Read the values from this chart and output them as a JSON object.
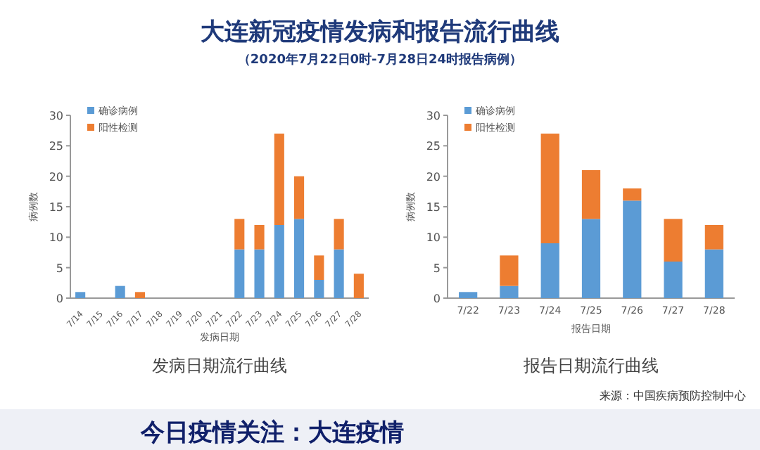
{
  "chart_data": [
    {
      "type": "bar",
      "stacked": true,
      "title": "发病日期流行曲线",
      "xlabel": "发病日期",
      "ylabel": "病例数",
      "annotations": [
        "大连新冠疫情发病和报告流行曲线",
        "（2020年7月22日0时-7月28日24时报告病例）"
      ],
      "categories": [
        "7/14",
        "7/15",
        "7/16",
        "7/17",
        "7/18",
        "7/19",
        "7/20",
        "7/21",
        "7/22",
        "7/23",
        "7/24",
        "7/25",
        "7/26",
        "7/27",
        "7/28"
      ],
      "series": [
        {
          "name": "确诊病例",
          "color": "#5b9bd5",
          "values": [
            1,
            0,
            2,
            0,
            0,
            0,
            0,
            0,
            8,
            8,
            12,
            13,
            3,
            8,
            0
          ]
        },
        {
          "name": "阳性检测",
          "color": "#ed7d31",
          "values": [
            0,
            0,
            0,
            1,
            0,
            0,
            0,
            0,
            5,
            4,
            15,
            7,
            4,
            5,
            4
          ]
        }
      ],
      "ylim": [
        0,
        30
      ],
      "yticks": [
        0,
        5,
        10,
        15,
        20,
        25,
        30
      ],
      "legend": "top left"
    },
    {
      "type": "bar",
      "stacked": true,
      "title": "报告日期流行曲线",
      "xlabel": "报告日期",
      "ylabel": "病例数",
      "annotations": [
        "来源：中国疾病预防控制中心",
        "今日疫情关注：大连疫情"
      ],
      "categories": [
        "7/22",
        "7/23",
        "7/24",
        "7/25",
        "7/26",
        "7/27",
        "7/28"
      ],
      "series": [
        {
          "name": "确诊病例",
          "color": "#5b9bd5",
          "values": [
            1,
            2,
            9,
            13,
            16,
            6,
            8
          ]
        },
        {
          "name": "阳性检测",
          "color": "#ed7d31",
          "values": [
            0,
            5,
            18,
            8,
            2,
            7,
            4
          ]
        }
      ],
      "ylim": [
        0,
        30
      ],
      "yticks": [
        0,
        5,
        10,
        15,
        20,
        25,
        30
      ],
      "legend": "top left"
    }
  ]
}
